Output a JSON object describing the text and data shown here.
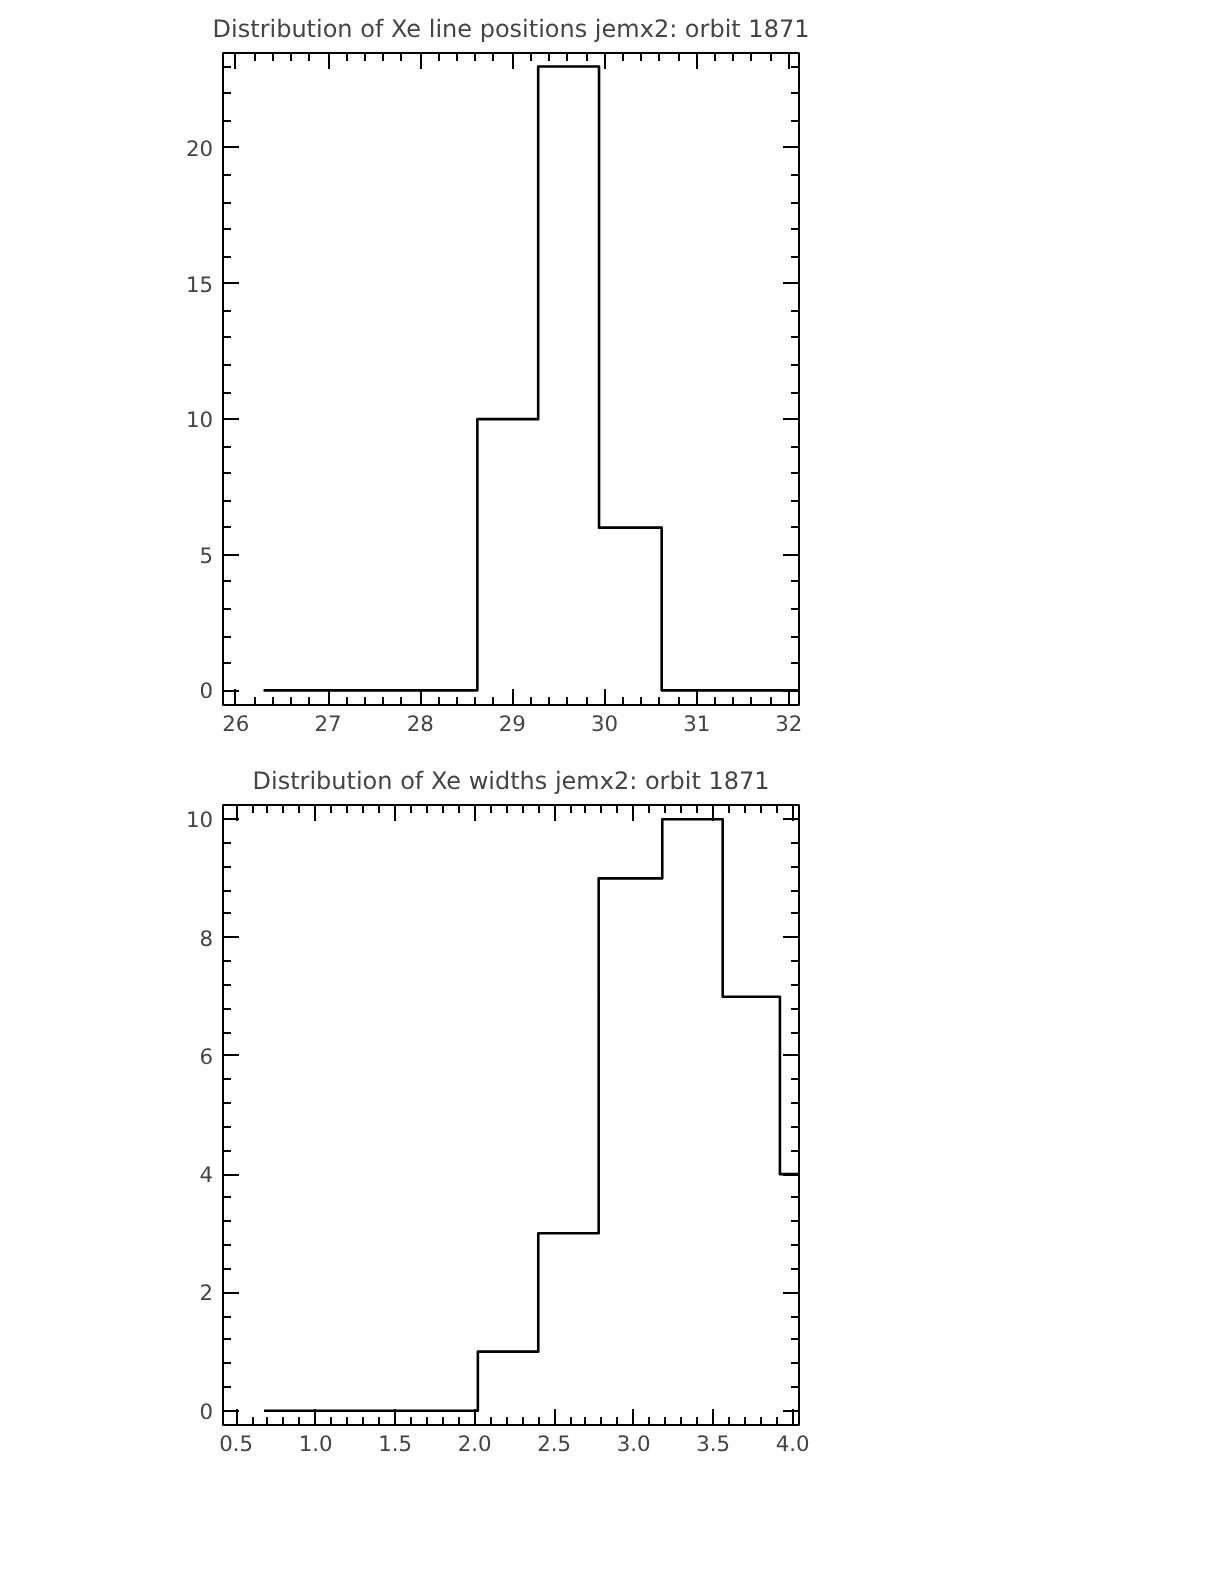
{
  "chart_data": [
    {
      "type": "histogram",
      "title": "Distribution of Xe line positions jemx2: orbit 1871",
      "bins": [
        26.3,
        28.62,
        29.28,
        29.94,
        30.62,
        32.11
      ],
      "values": [
        0,
        10,
        23,
        6,
        0
      ],
      "color": "#000000",
      "xlim": [
        25.86,
        32.11
      ],
      "xticks": [
        26,
        27,
        28,
        29,
        30,
        31,
        32
      ],
      "ylim": [
        -0.54,
        23.5
      ],
      "yticks": [
        0,
        5,
        10,
        15,
        20
      ],
      "grid": false
    },
    {
      "type": "histogram",
      "title": "Distribution of Xe widths jemx2: orbit 1871",
      "bins": [
        0.675,
        2.02,
        2.4,
        2.78,
        3.18,
        3.56,
        3.92,
        4.04
      ],
      "values": [
        0,
        1,
        3,
        9,
        10,
        7,
        4
      ],
      "color": "#000000",
      "xlim": [
        0.417,
        4.04
      ],
      "xticks": [
        {
          "value": 0.5,
          "label": "0.5"
        },
        {
          "value": 1.0,
          "label": "1.0"
        },
        {
          "value": 1.5,
          "label": "1.5"
        },
        {
          "value": 2.0,
          "label": "2.0"
        },
        {
          "value": 2.5,
          "label": "2.5"
        },
        {
          "value": 3.0,
          "label": "3.0"
        },
        {
          "value": 3.5,
          "label": "3.5"
        },
        {
          "value": 4.0,
          "label": "4.0"
        }
      ],
      "ylim": [
        -0.24,
        10.24
      ],
      "yticks": [
        0,
        2,
        4,
        6,
        8,
        10
      ],
      "grid": false
    }
  ]
}
